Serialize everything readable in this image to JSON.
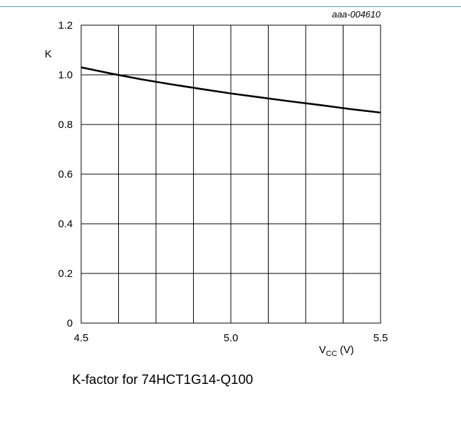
{
  "figure_code": "aaa-004610",
  "caption": "K-factor for 74HCT1G14-Q100",
  "chart_data": {
    "type": "line",
    "title": "",
    "xlabel_main": "V",
    "xlabel_sub": "CC",
    "xlabel_unit": "(V)",
    "ylabel": "K",
    "xlim": [
      4.5,
      5.5
    ],
    "ylim": [
      0,
      1.2
    ],
    "grid": true,
    "x_ticks": [
      {
        "value": 4.5,
        "label": "4.5"
      },
      {
        "value": 5.0,
        "label": "5.0"
      },
      {
        "value": 5.5,
        "label": "5.5"
      }
    ],
    "y_ticks": [
      {
        "value": 0,
        "label": "0"
      },
      {
        "value": 0.2,
        "label": "0.2"
      },
      {
        "value": 0.4,
        "label": "0.4"
      },
      {
        "value": 0.6,
        "label": "0.6"
      },
      {
        "value": 0.8,
        "label": "0.8"
      },
      {
        "value": 1.0,
        "label": "1.0"
      },
      {
        "value": 1.2,
        "label": "1.2"
      }
    ],
    "x_grid_values": [
      4.5,
      4.625,
      4.75,
      4.875,
      5.0,
      5.125,
      5.25,
      5.375,
      5.5
    ],
    "y_grid_values": [
      0,
      0.2,
      0.4,
      0.6,
      0.8,
      1.0,
      1.2
    ],
    "series": [
      {
        "x": [
          4.5,
          4.6,
          4.7,
          4.8,
          4.9,
          5.0,
          5.1,
          5.2,
          5.3,
          5.4,
          5.5
        ],
        "y": [
          1.03,
          1.005,
          0.982,
          0.962,
          0.943,
          0.925,
          0.909,
          0.893,
          0.878,
          0.862,
          0.848
        ]
      }
    ]
  }
}
